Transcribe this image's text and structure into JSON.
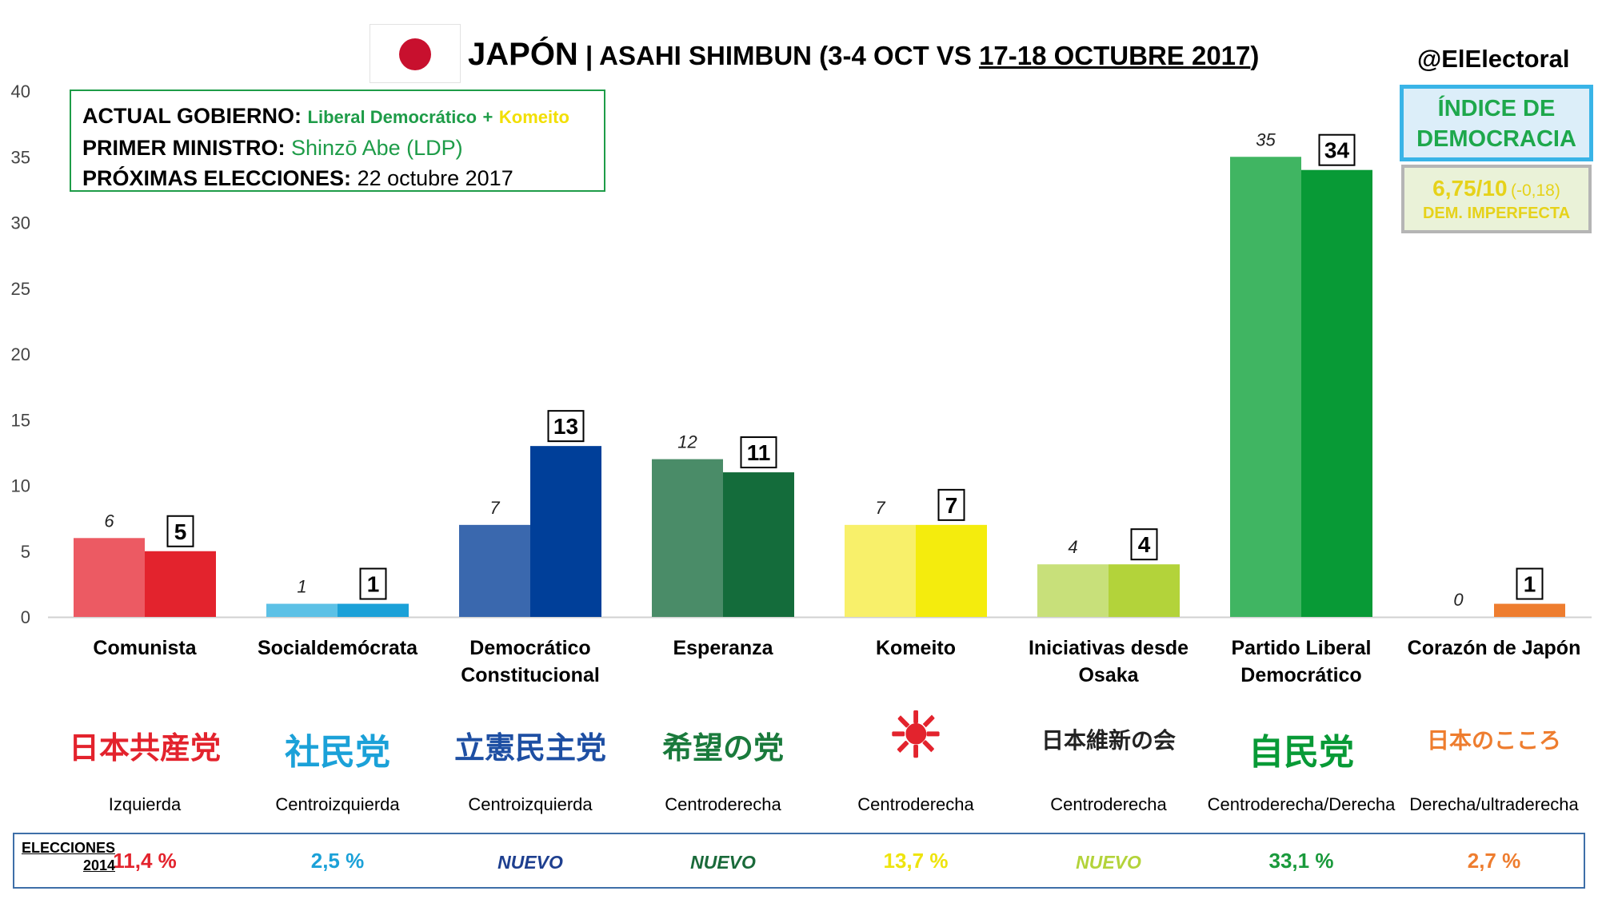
{
  "header": {
    "country": "JAPÓN",
    "separator": "|",
    "pollster": "ASAHI SHIMBUN (3-4 OCT VS",
    "dates": "17-18 OCTUBRE 2017",
    "close_paren": ")",
    "handle": "@ElElectoral"
  },
  "info": {
    "gov_label": "ACTUAL GOBIERNO:",
    "gov_party1": "Liberal Democrático",
    "gov_plus": "+",
    "gov_party2": "Komeito",
    "pm_label": "PRIMER MINISTRO:",
    "pm_value": "Shinzō Abe (LDP)",
    "elections_label": "PRÓXIMAS ELECCIONES:",
    "elections_value": "22 octubre 2017"
  },
  "democracy": {
    "title_line1": "ÍNDICE DE",
    "title_line2": "DEMOCRACIA",
    "score": "6,75/10",
    "change": "(-0,18)",
    "category": "DEM. IMPERFECTA"
  },
  "elections_2014": {
    "label_line1": "ELECCIONES",
    "label_line2": "2014"
  },
  "parties": [
    {
      "name_line1": "Comunista",
      "name_line2": "",
      "logo_text": "日本共産党",
      "orientation": "Izquierda",
      "prev": 6,
      "curr": 5,
      "color_prev": "#ec5a63",
      "color_curr": "#e3232d",
      "logo_color": "#e3232d",
      "elec2014": "11,4 %",
      "elec_color": "#e3232d",
      "nuevo": false
    },
    {
      "name_line1": "Socialdemócrata",
      "name_line2": "",
      "logo_text": "社民党",
      "orientation": "Centroizquierda",
      "prev": 1,
      "curr": 1,
      "color_prev": "#5cc1e6",
      "color_curr": "#1ba1d8",
      "logo_color": "#1ba1d8",
      "elec2014": "2,5 %",
      "elec_color": "#1ba1d8",
      "nuevo": false
    },
    {
      "name_line1": "Democrático",
      "name_line2": "Constitucional",
      "logo_text": "立憲民主党",
      "orientation": "Centroizquierda",
      "prev": 7,
      "curr": 13,
      "color_prev": "#3a68ae",
      "color_curr": "#003f99",
      "logo_color": "#1e4fa3",
      "elec2014": "NUEVO",
      "elec_color": "#1e3f8f",
      "nuevo": true
    },
    {
      "name_line1": "Esperanza",
      "name_line2": "",
      "logo_text": "希望の党",
      "orientation": "Centroderecha",
      "prev": 12,
      "curr": 11,
      "color_prev": "#4a8c68",
      "color_curr": "#146c3b",
      "logo_color": "#1a7a3c",
      "elec2014": "NUEVO",
      "elec_color": "#1a6a3a",
      "nuevo": true
    },
    {
      "name_line1": "Komeito",
      "name_line2": "",
      "logo_text": "☀",
      "orientation": "Centroderecha",
      "prev": 7,
      "curr": 7,
      "color_prev": "#f8f06a",
      "color_curr": "#f4ec0d",
      "logo_color": "#e3232d",
      "elec2014": "13,7 %",
      "elec_color": "#eee40e",
      "nuevo": false
    },
    {
      "name_line1": "Iniciativas desde",
      "name_line2": "Osaka",
      "logo_text": "日本維新の会",
      "orientation": "Centroderecha",
      "prev": 4,
      "curr": 4,
      "color_prev": "#c8e07a",
      "color_curr": "#b3d33a",
      "logo_color": "#222222",
      "elec2014": "NUEVO",
      "elec_color": "#b3d33a",
      "nuevo": true
    },
    {
      "name_line1": "Partido Liberal",
      "name_line2": "Democrático",
      "logo_text": "自民党",
      "orientation": "Centroderecha/Derecha",
      "prev": 35,
      "curr": 34,
      "color_prev": "#40b562",
      "color_curr": "#089a36",
      "logo_color": "#089a36",
      "elec2014": "33,1 %",
      "elec_color": "#1a9a3c",
      "nuevo": false
    },
    {
      "name_line1": "Corazón de Japón",
      "name_line2": "",
      "logo_text": "日本のこころ",
      "orientation": "Derecha/ultraderecha",
      "prev": 0,
      "curr": 1,
      "color_prev": "#f59a5a",
      "color_curr": "#ee7d2f",
      "logo_color": "#ee7d2f",
      "elec2014": "2,7 %",
      "elec_color": "#ee7d2f",
      "nuevo": false
    }
  ],
  "chart_data": {
    "type": "bar",
    "categories": [
      "Comunista",
      "Socialdemócrata",
      "Democrático Constitucional",
      "Esperanza",
      "Komeito",
      "Iniciativas desde Osaka",
      "Partido Liberal Democrático",
      "Corazón de Japón"
    ],
    "series": [
      {
        "values": [
          6,
          1,
          7,
          12,
          7,
          4,
          35,
          0
        ]
      },
      {
        "values": [
          5,
          1,
          13,
          11,
          7,
          4,
          34,
          1
        ]
      }
    ],
    "yticks": [
      0,
      5,
      10,
      15,
      20,
      25,
      30,
      35,
      40
    ],
    "ylim": [
      0,
      40
    ],
    "grid": false
  }
}
